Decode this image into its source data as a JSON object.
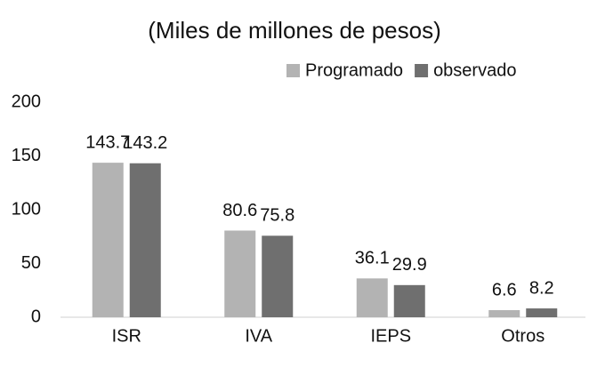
{
  "chart_data": {
    "type": "bar",
    "title": "(Miles de millones de pesos)",
    "categories": [
      "ISR",
      "IVA",
      "IEPS",
      "Otros"
    ],
    "series": [
      {
        "name": "Programado",
        "color": "#b3b3b3",
        "values": [
          143.7,
          80.6,
          36.1,
          6.6
        ]
      },
      {
        "name": "observado",
        "color": "#6f6f6f",
        "values": [
          143.2,
          75.8,
          29.9,
          8.2
        ]
      }
    ],
    "ylim": [
      0,
      200
    ],
    "yticks": [
      0,
      50,
      100,
      150,
      200
    ],
    "grid": false,
    "legend": "top-right"
  }
}
